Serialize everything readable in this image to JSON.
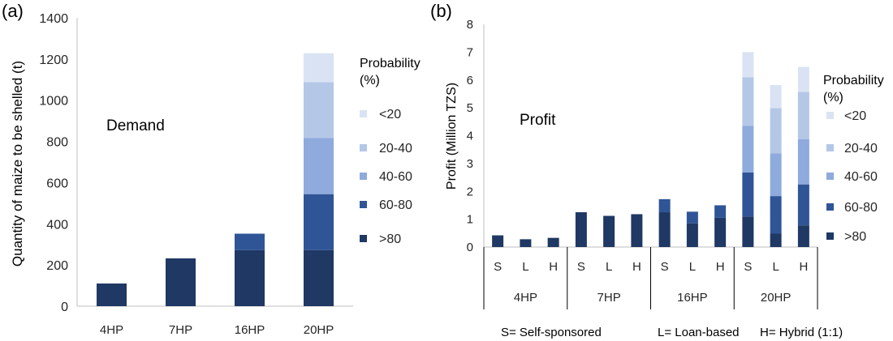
{
  "colors": {
    "p_gt80": "#1f3864",
    "p_60_80": "#2f5597",
    "p_40_60": "#8faadc",
    "p_20_40": "#b4c7e7",
    "p_lt20": "#dae3f3",
    "axis": "#bfbfbf",
    "text": "#1f1f1f"
  },
  "chart_data": [
    {
      "panel_label": "(a)",
      "type": "bar",
      "stacked": true,
      "annotation": "Demand",
      "ylabel": "Quantity of maize  to be shelled (t)",
      "ylim": [
        0,
        1400
      ],
      "yticks": [
        0,
        200,
        400,
        600,
        800,
        1000,
        1200,
        1400
      ],
      "grid": false,
      "categories": [
        "4HP",
        "7HP",
        "16HP",
        "20HP"
      ],
      "legend": {
        "title_line1": "Probability",
        "title_line2": "(%)",
        "position": "right"
      },
      "series": [
        {
          "name": ">80",
          "color_key": "p_gt80",
          "values": [
            110,
            232,
            272,
            272
          ]
        },
        {
          "name": "60-80",
          "color_key": "p_60_80",
          "values": [
            0,
            0,
            80,
            272
          ]
        },
        {
          "name": "40-60",
          "color_key": "p_40_60",
          "values": [
            0,
            0,
            0,
            272
          ]
        },
        {
          "name": "20-40",
          "color_key": "p_20_40",
          "values": [
            0,
            0,
            0,
            272
          ]
        },
        {
          "name": "<20",
          "color_key": "p_lt20",
          "values": [
            0,
            0,
            0,
            140
          ]
        }
      ]
    },
    {
      "panel_label": "(b)",
      "type": "bar",
      "stacked": true,
      "annotation": "Profit",
      "ylabel": "Profit (Million TZS)",
      "ylim": [
        0,
        8
      ],
      "yticks": [
        0,
        1,
        2,
        3,
        4,
        5,
        6,
        7,
        8
      ],
      "grid": false,
      "groups": [
        {
          "label": "4HP",
          "subs": [
            "S",
            "L",
            "H"
          ]
        },
        {
          "label": "7HP",
          "subs": [
            "S",
            "L",
            "H"
          ]
        },
        {
          "label": "16HP",
          "subs": [
            "S",
            "L",
            "H"
          ]
        },
        {
          "label": "20HP",
          "subs": [
            "S",
            "L",
            "H"
          ]
        }
      ],
      "legend": {
        "title_line1": "Probability",
        "title_line2": "(%)",
        "position": "right"
      },
      "series": [
        {
          "name": ">80",
          "color_key": "p_gt80",
          "values": [
            0.42,
            0.28,
            0.33,
            1.25,
            1.12,
            1.18,
            1.25,
            0.85,
            1.05,
            1.1,
            0.48,
            0.78
          ]
        },
        {
          "name": "60-80",
          "color_key": "p_60_80",
          "values": [
            0,
            0,
            0,
            0,
            0,
            0,
            0.47,
            0.42,
            0.45,
            1.58,
            1.35,
            1.47
          ]
        },
        {
          "name": "40-60",
          "color_key": "p_40_60",
          "values": [
            0,
            0,
            0,
            0,
            0,
            0,
            0,
            0,
            0,
            1.67,
            1.53,
            1.62
          ]
        },
        {
          "name": "20-40",
          "color_key": "p_20_40",
          "values": [
            0,
            0,
            0,
            0,
            0,
            0,
            0,
            0,
            0,
            1.75,
            1.63,
            1.7
          ]
        },
        {
          "name": "<20",
          "color_key": "p_lt20",
          "values": [
            0,
            0,
            0,
            0,
            0,
            0,
            0,
            0,
            0,
            0.9,
            0.83,
            0.9
          ]
        }
      ],
      "footnotes": [
        "S= Self-sponsored",
        "L= Loan-based",
        "H= Hybrid (1:1)"
      ]
    }
  ]
}
